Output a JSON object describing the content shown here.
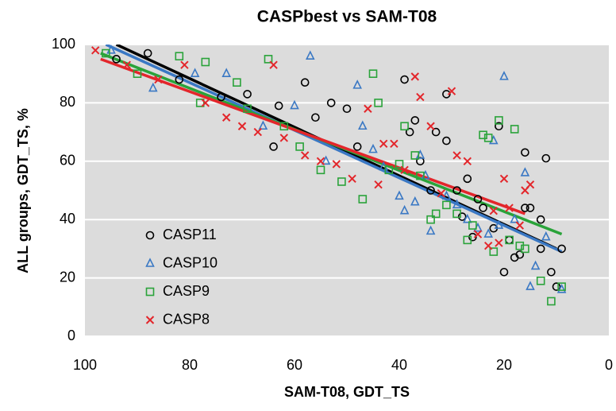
{
  "chart_data": {
    "type": "scatter",
    "title": "CASPbest vs SAM-T08",
    "x_label": "SAM-T08, GDT_TS",
    "y_label": "ALL groups, GDT_TS, %",
    "xlim": [
      100,
      0
    ],
    "ylim": [
      0,
      100
    ],
    "xticks": [
      100,
      80,
      60,
      40,
      20,
      0
    ],
    "yticks": [
      0,
      20,
      40,
      60,
      80,
      100
    ],
    "grid": true,
    "legend_position": "lower left",
    "series": [
      {
        "name": "CASP11",
        "color": "#000000",
        "marker": "circle",
        "x": [
          94,
          88,
          82,
          74,
          69,
          64,
          63,
          58,
          56,
          53,
          50,
          48,
          39,
          38,
          37,
          36,
          34,
          33,
          31,
          31,
          29,
          28,
          27,
          26,
          25,
          24,
          22,
          21,
          20,
          19,
          18,
          17,
          16,
          16,
          15,
          13,
          13,
          12,
          11,
          10,
          9
        ],
        "values": [
          95,
          97,
          88,
          82,
          83,
          65,
          79,
          87,
          75,
          80,
          78,
          65,
          88,
          70,
          74,
          60,
          50,
          70,
          83,
          67,
          50,
          41,
          54,
          34,
          47,
          44,
          37,
          72,
          22,
          33,
          27,
          28,
          63,
          44,
          44,
          40,
          30,
          61,
          22,
          17,
          30
        ],
        "trendline": {
          "x": [
            94,
            10
          ],
          "y": [
            100,
            30
          ]
        }
      },
      {
        "name": "CASP10",
        "color": "#3a78c4",
        "marker": "triangle",
        "x": [
          95,
          87,
          79,
          73,
          66,
          60,
          57,
          54,
          48,
          47,
          45,
          43,
          40,
          39,
          37,
          36,
          35,
          34,
          31,
          29,
          27,
          25,
          23,
          22,
          21,
          20,
          18,
          16,
          15,
          14,
          12,
          9
        ],
        "values": [
          98,
          85,
          90,
          90,
          72,
          79,
          96,
          60,
          86,
          72,
          64,
          58,
          48,
          43,
          46,
          62,
          55,
          36,
          48,
          45,
          40,
          37,
          35,
          67,
          38,
          89,
          40,
          56,
          17,
          24,
          34,
          16
        ],
        "trendline": {
          "x": [
            96,
            9
          ],
          "y": [
            100,
            29
          ]
        }
      },
      {
        "name": "CASP9",
        "color": "#2aa33a",
        "marker": "square",
        "x": [
          96,
          90,
          82,
          78,
          77,
          71,
          69,
          65,
          62,
          59,
          55,
          51,
          47,
          45,
          44,
          42,
          40,
          39,
          37,
          36,
          34,
          33,
          31,
          29,
          27,
          26,
          24,
          23,
          22,
          21,
          19,
          18,
          17,
          16,
          13,
          11,
          9
        ],
        "values": [
          97,
          90,
          96,
          80,
          94,
          87,
          78,
          95,
          72,
          65,
          57,
          53,
          47,
          90,
          80,
          57,
          59,
          72,
          62,
          55,
          40,
          42,
          45,
          42,
          33,
          38,
          69,
          68,
          29,
          74,
          33,
          71,
          31,
          30,
          19,
          12,
          17
        ],
        "trendline": {
          "x": [
            97,
            9
          ],
          "y": [
            97,
            35
          ]
        }
      },
      {
        "name": "CASP8",
        "color": "#e3262b",
        "marker": "x",
        "x": [
          98,
          92,
          86,
          81,
          77,
          73,
          70,
          67,
          64,
          62,
          58,
          55,
          52,
          49,
          46,
          44,
          43,
          41,
          39,
          37,
          36,
          34,
          32,
          30,
          29,
          27,
          25,
          23,
          22,
          21,
          20,
          19,
          17,
          16,
          15
        ],
        "values": [
          98,
          93,
          88,
          93,
          80,
          75,
          72,
          70,
          93,
          68,
          62,
          60,
          59,
          54,
          78,
          52,
          66,
          66,
          57,
          89,
          82,
          72,
          49,
          84,
          62,
          60,
          35,
          31,
          43,
          32,
          54,
          44,
          38,
          50,
          52
        ],
        "trendline": {
          "x": [
            97,
            16
          ],
          "y": [
            95,
            42
          ]
        }
      }
    ]
  }
}
